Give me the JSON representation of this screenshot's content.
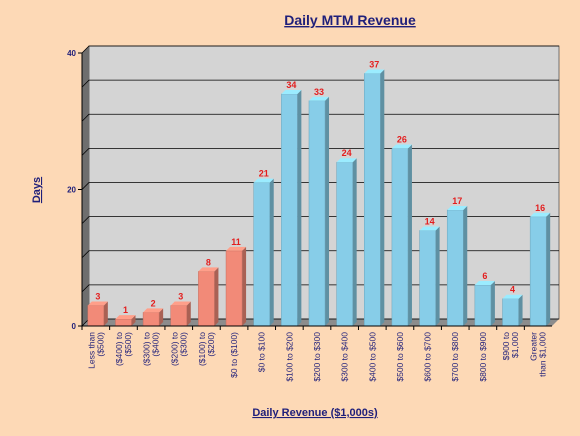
{
  "chart_data": {
    "type": "bar",
    "title": "Daily MTM Revenue",
    "xlabel": "Daily Revenue ($1,000s)",
    "ylabel": "Days",
    "ylim": [
      0,
      40
    ],
    "yticks": [
      "0",
      "20",
      "40"
    ],
    "grid": true,
    "categories": [
      [
        "Less than",
        "($500)"
      ],
      [
        "($400) to",
        "($500)"
      ],
      [
        "($300) to",
        "($400)"
      ],
      [
        "($200) to",
        "($300)"
      ],
      [
        "($100) to",
        "($200)"
      ],
      [
        "$0 to ($100)"
      ],
      [
        "$0 to $100"
      ],
      [
        "$100 to $200"
      ],
      [
        "$200 to $300"
      ],
      [
        "$300 to $400"
      ],
      [
        "$400 to $500"
      ],
      [
        "$500 to $600"
      ],
      [
        "$600 to $700"
      ],
      [
        "$700 to $800"
      ],
      [
        "$800 to $900"
      ],
      [
        "$900 to",
        "$1,000"
      ],
      [
        "Greater",
        "than $1,000"
      ]
    ],
    "values": [
      3,
      1,
      2,
      3,
      8,
      11,
      21,
      34,
      33,
      24,
      37,
      26,
      14,
      17,
      6,
      4,
      16
    ],
    "data_labels": [
      "3",
      "1",
      "2",
      "3",
      "8",
      "11",
      "21",
      "34",
      "33",
      "24",
      "37",
      "26",
      "14",
      "17",
      "6",
      "4",
      "16"
    ],
    "colors": {
      "negative_bar": "#f28a78",
      "positive_bar": "#87cde8",
      "plot_background": "#d4d4d4",
      "data_label": "#e31e1e",
      "text": "#1f1f7a",
      "page_background": "#fdd9b6"
    }
  }
}
